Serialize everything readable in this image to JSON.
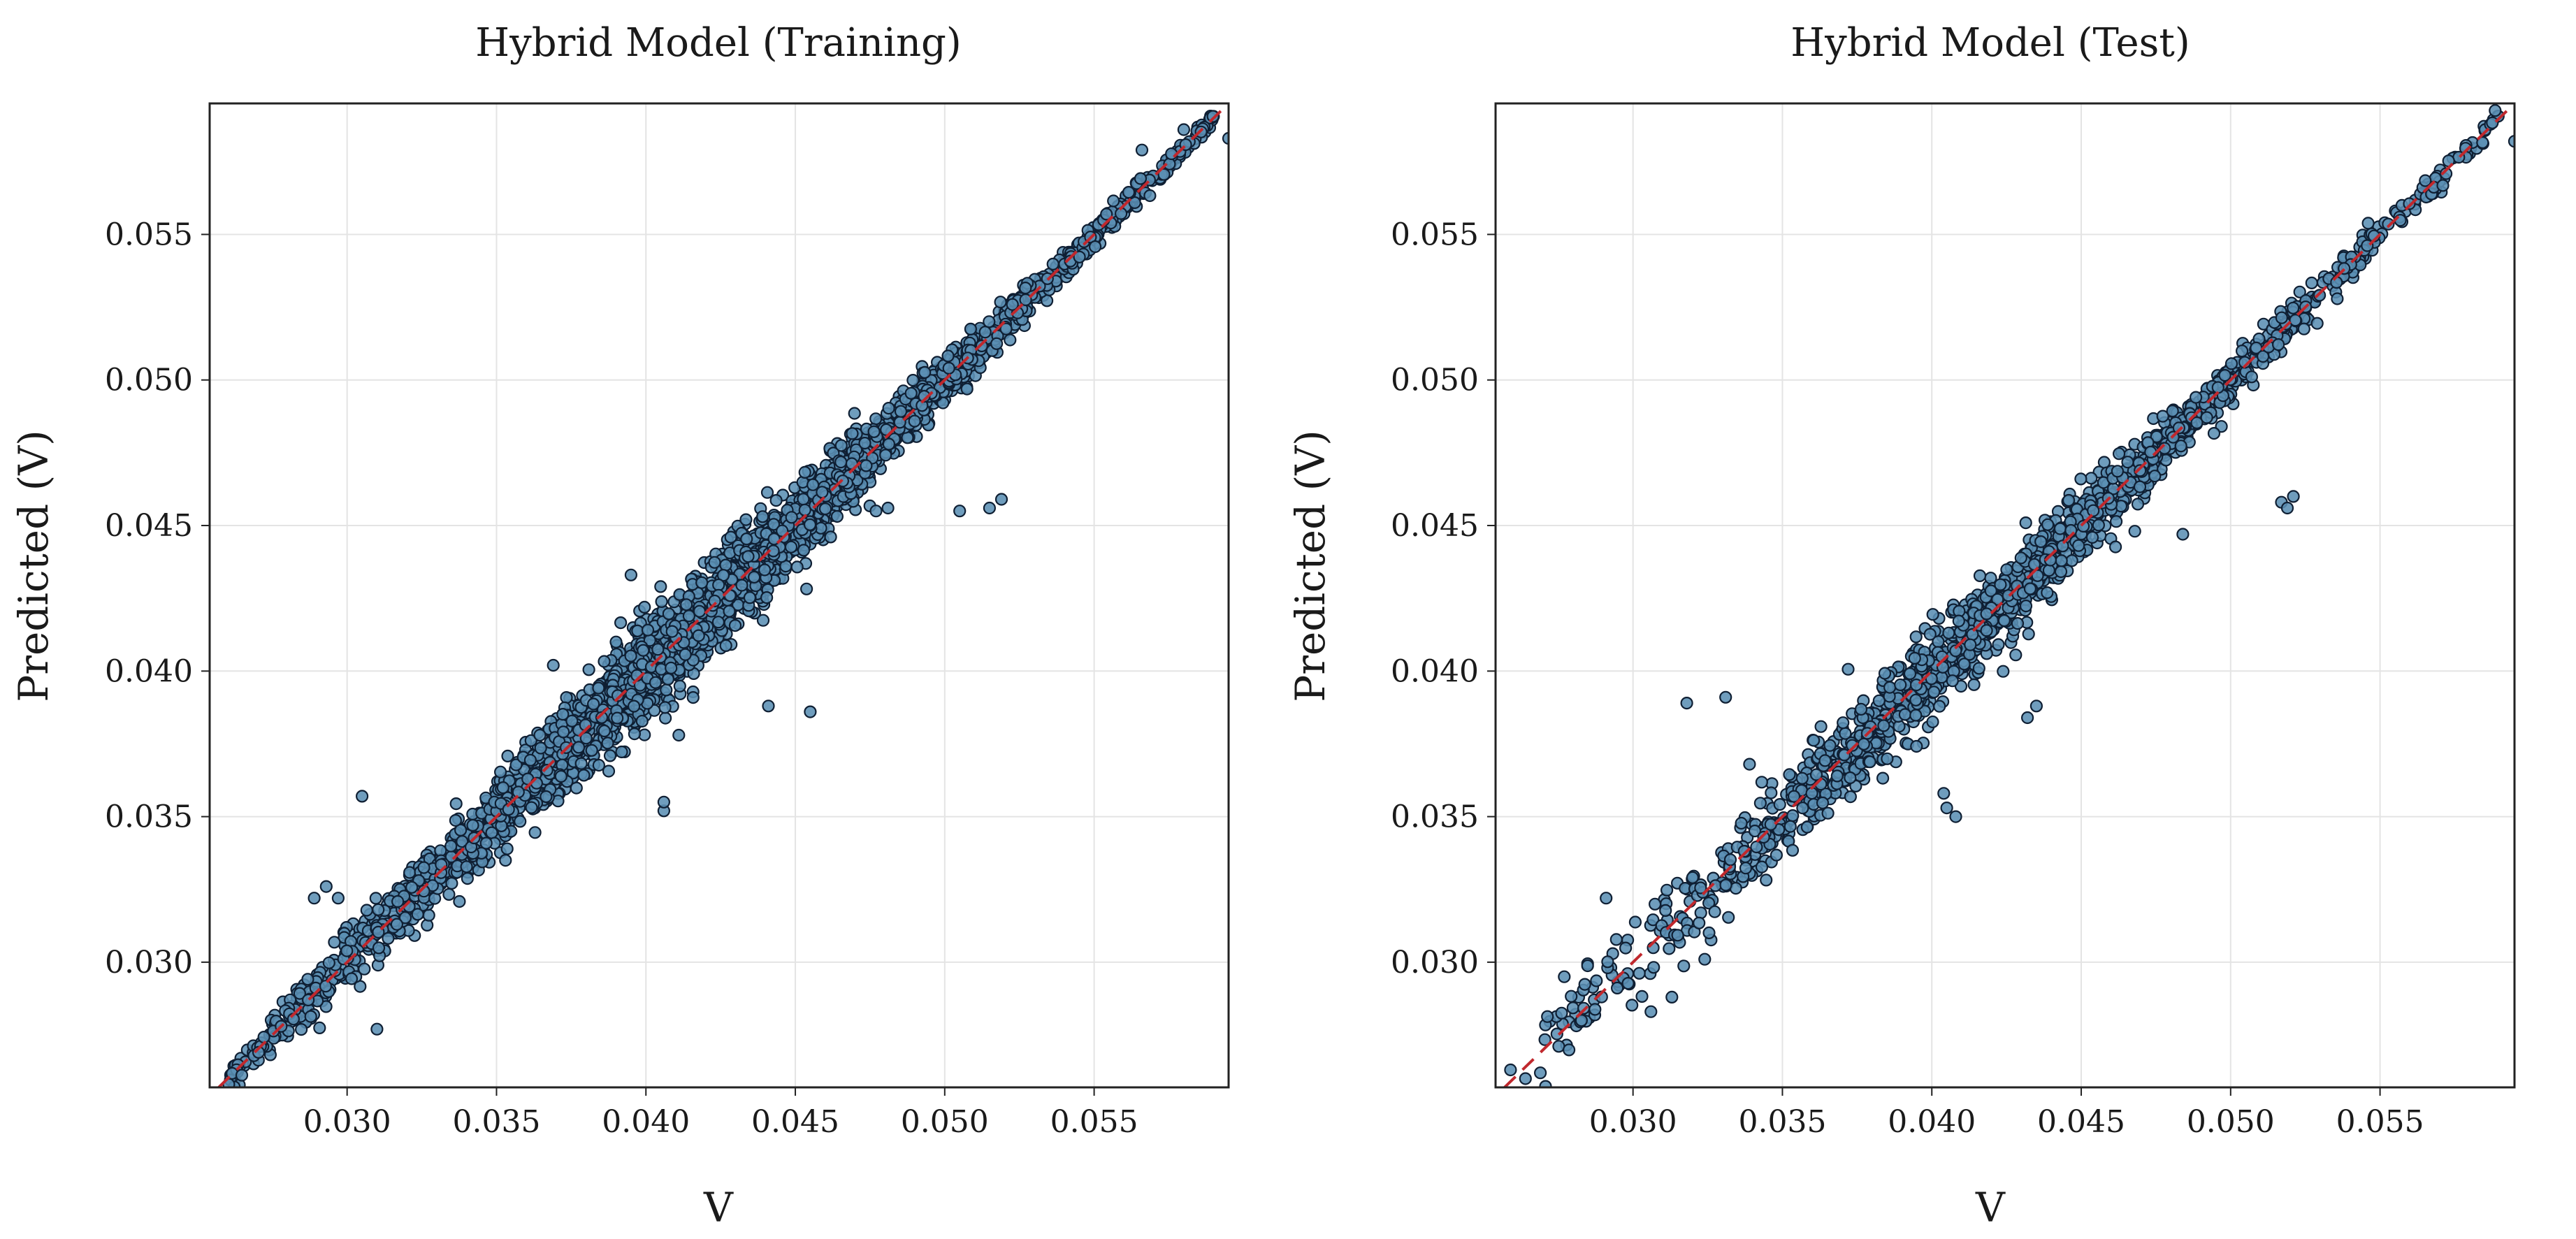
{
  "colors": {
    "point_fill": "#5b8fb4",
    "point_stroke": "#0f1f33",
    "reference_line": "#c0282d",
    "grid": "#e4e4e4"
  },
  "chart_data": [
    {
      "type": "scatter",
      "title": "Hybrid Model (Training)",
      "xlabel": "V",
      "ylabel": "Predicted (V)",
      "xlim": [
        0.0254,
        0.0595
      ],
      "ylim": [
        0.0257,
        0.0595
      ],
      "xticks": [
        "0.030",
        "0.035",
        "0.040",
        "0.045",
        "0.050",
        "0.055"
      ],
      "yticks": [
        "0.030",
        "0.035",
        "0.040",
        "0.045",
        "0.050",
        "0.055"
      ],
      "grid": true,
      "reference_line": "y = x",
      "point_count": 3000,
      "noise_sd": 0.00075,
      "band": [
        {
          "x": 0.026,
          "sd": 0.0002
        },
        {
          "x": 0.03,
          "sd": 0.00055
        },
        {
          "x": 0.035,
          "sd": 0.0006
        },
        {
          "x": 0.04,
          "sd": 0.0009
        },
        {
          "x": 0.045,
          "sd": 0.0007
        },
        {
          "x": 0.05,
          "sd": 0.0004
        },
        {
          "x": 0.055,
          "sd": 0.00025
        },
        {
          "x": 0.059,
          "sd": 0.0002
        }
      ],
      "outliers": [
        {
          "x": 0.0305,
          "y": 0.0357
        },
        {
          "x": 0.0395,
          "y": 0.0433
        },
        {
          "x": 0.0406,
          "y": 0.0352
        },
        {
          "x": 0.0406,
          "y": 0.0355
        },
        {
          "x": 0.0477,
          "y": 0.0455
        },
        {
          "x": 0.0481,
          "y": 0.0456
        },
        {
          "x": 0.0505,
          "y": 0.0455
        },
        {
          "x": 0.0515,
          "y": 0.0456
        },
        {
          "x": 0.0519,
          "y": 0.0459
        },
        {
          "x": 0.0455,
          "y": 0.0386
        },
        {
          "x": 0.0441,
          "y": 0.0388
        },
        {
          "x": 0.0353,
          "y": 0.0335
        },
        {
          "x": 0.0297,
          "y": 0.0322
        },
        {
          "x": 0.0293,
          "y": 0.0326
        },
        {
          "x": 0.0289,
          "y": 0.0322
        },
        {
          "x": 0.031,
          "y": 0.0277
        },
        {
          "x": 0.0287,
          "y": 0.0287
        },
        {
          "x": 0.0411,
          "y": 0.0378
        },
        {
          "x": 0.0369,
          "y": 0.0402
        },
        {
          "x": 0.039,
          "y": 0.041
        },
        {
          "x": 0.0595,
          "y": 0.0583
        },
        {
          "x": 0.058,
          "y": 0.0586
        },
        {
          "x": 0.0566,
          "y": 0.0579
        }
      ]
    },
    {
      "type": "scatter",
      "title": "Hybrid Model (Test)",
      "xlabel": "V",
      "ylabel": "Predicted (V)",
      "xlim": [
        0.0254,
        0.0595
      ],
      "ylim": [
        0.0257,
        0.0595
      ],
      "xticks": [
        "0.030",
        "0.035",
        "0.040",
        "0.045",
        "0.050",
        "0.055"
      ],
      "yticks": [
        "0.030",
        "0.035",
        "0.040",
        "0.045",
        "0.050",
        "0.055"
      ],
      "grid": true,
      "reference_line": "y = x",
      "point_count": 1500,
      "noise_sd": 0.00065,
      "band": [
        {
          "x": 0.027,
          "sd": 0.0005
        },
        {
          "x": 0.03,
          "sd": 0.0007
        },
        {
          "x": 0.035,
          "sd": 0.0008
        },
        {
          "x": 0.04,
          "sd": 0.0008
        },
        {
          "x": 0.045,
          "sd": 0.0006
        },
        {
          "x": 0.05,
          "sd": 0.0004
        },
        {
          "x": 0.055,
          "sd": 0.00025
        },
        {
          "x": 0.059,
          "sd": 0.0002
        }
      ],
      "outliers": [
        {
          "x": 0.0318,
          "y": 0.0389
        },
        {
          "x": 0.0331,
          "y": 0.0391
        },
        {
          "x": 0.0405,
          "y": 0.0353
        },
        {
          "x": 0.0408,
          "y": 0.035
        },
        {
          "x": 0.0404,
          "y": 0.0358
        },
        {
          "x": 0.0517,
          "y": 0.0458
        },
        {
          "x": 0.0521,
          "y": 0.046
        },
        {
          "x": 0.0519,
          "y": 0.0456
        },
        {
          "x": 0.0484,
          "y": 0.0447
        },
        {
          "x": 0.0432,
          "y": 0.0384
        },
        {
          "x": 0.0435,
          "y": 0.0388
        },
        {
          "x": 0.0339,
          "y": 0.0368
        },
        {
          "x": 0.0313,
          "y": 0.0288
        },
        {
          "x": 0.0306,
          "y": 0.0283
        },
        {
          "x": 0.0324,
          "y": 0.0301
        },
        {
          "x": 0.0291,
          "y": 0.0322
        },
        {
          "x": 0.0277,
          "y": 0.0295
        },
        {
          "x": 0.0259,
          "y": 0.0263
        },
        {
          "x": 0.0264,
          "y": 0.026
        },
        {
          "x": 0.0269,
          "y": 0.0262
        },
        {
          "x": 0.0595,
          "y": 0.0582
        }
      ]
    }
  ]
}
